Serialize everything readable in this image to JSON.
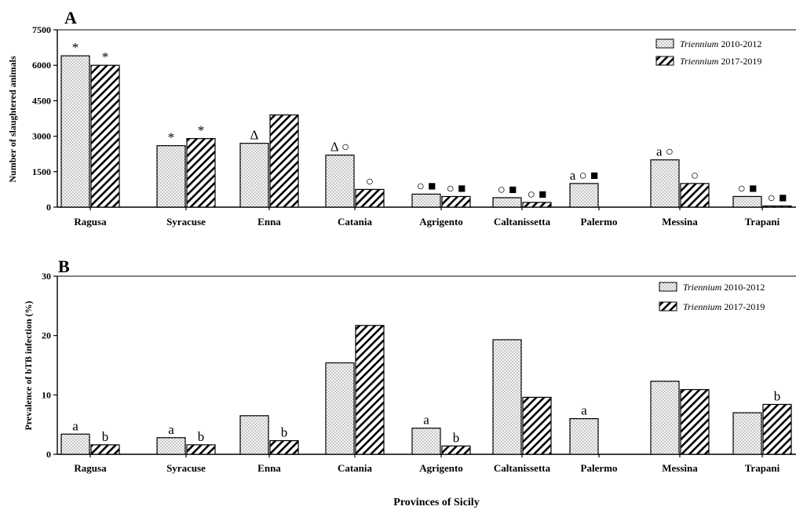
{
  "figure": {
    "xlabel": "Provinces of Sicily",
    "colors": {
      "bar_stroke": "#000000",
      "dot_fill": "#cfcfcf",
      "hatch": "#000000",
      "background": "#ffffff"
    }
  },
  "chart_data": [
    {
      "type": "bar",
      "panel_label": "A",
      "ylabel": "Number of slaughtered animals",
      "ylim": [
        0,
        7500
      ],
      "yticks": [
        "0",
        "1500",
        "3000",
        "4500",
        "6000",
        "7500"
      ],
      "grid": false,
      "legend_position": "top-right",
      "categories": [
        "Ragusa",
        "Syracuse",
        "Enna",
        "Catania",
        "Agrigento",
        "Caltanissetta",
        "Palermo",
        "Messina",
        "Trapani"
      ],
      "series": [
        {
          "name_italic": "Triennium",
          "name_rest": " 2010-2012",
          "pattern": "dots",
          "values": [
            6400,
            2600,
            2700,
            2200,
            550,
            400,
            1000,
            2000,
            450
          ],
          "annotations": [
            "*",
            "*",
            "Δ",
            "Δ ○",
            "○ ■",
            "○ ■",
            "a ○ ■",
            "a ○",
            "○ ■"
          ]
        },
        {
          "name_italic": "Triennium",
          "name_rest": " 2017-2019",
          "pattern": "hatch",
          "values": [
            6000,
            2900,
            3900,
            750,
            450,
            200,
            0,
            1000,
            50
          ],
          "annotations": [
            "*",
            "*",
            "",
            "○",
            "○ ■",
            "○ ■",
            "",
            "○",
            "○ ■"
          ]
        }
      ]
    },
    {
      "type": "bar",
      "panel_label": "B",
      "ylabel": "Prevalence of bTB infection (%)",
      "ylim": [
        0,
        30
      ],
      "yticks": [
        "0",
        "10",
        "20",
        "30"
      ],
      "grid": false,
      "legend_position": "top-right",
      "categories": [
        "Ragusa",
        "Syracuse",
        "Enna",
        "Catania",
        "Agrigento",
        "Caltanissetta",
        "Palermo",
        "Messina",
        "Trapani"
      ],
      "series": [
        {
          "name_italic": "Triennium",
          "name_rest": " 2010-2012",
          "pattern": "dots",
          "values": [
            3.4,
            2.8,
            6.5,
            15.4,
            4.4,
            19.3,
            6.0,
            12.3,
            7.0
          ],
          "annotations": [
            "a",
            "a",
            "",
            "",
            "a",
            "",
            "a",
            "",
            ""
          ]
        },
        {
          "name_italic": "Triennium",
          "name_rest": " 2017-2019",
          "pattern": "hatch",
          "values": [
            1.6,
            1.6,
            2.3,
            21.7,
            1.4,
            9.6,
            0,
            10.9,
            8.4
          ],
          "annotations": [
            "b",
            "b",
            "b",
            "",
            "b",
            "",
            "",
            "",
            "b"
          ]
        }
      ]
    }
  ]
}
